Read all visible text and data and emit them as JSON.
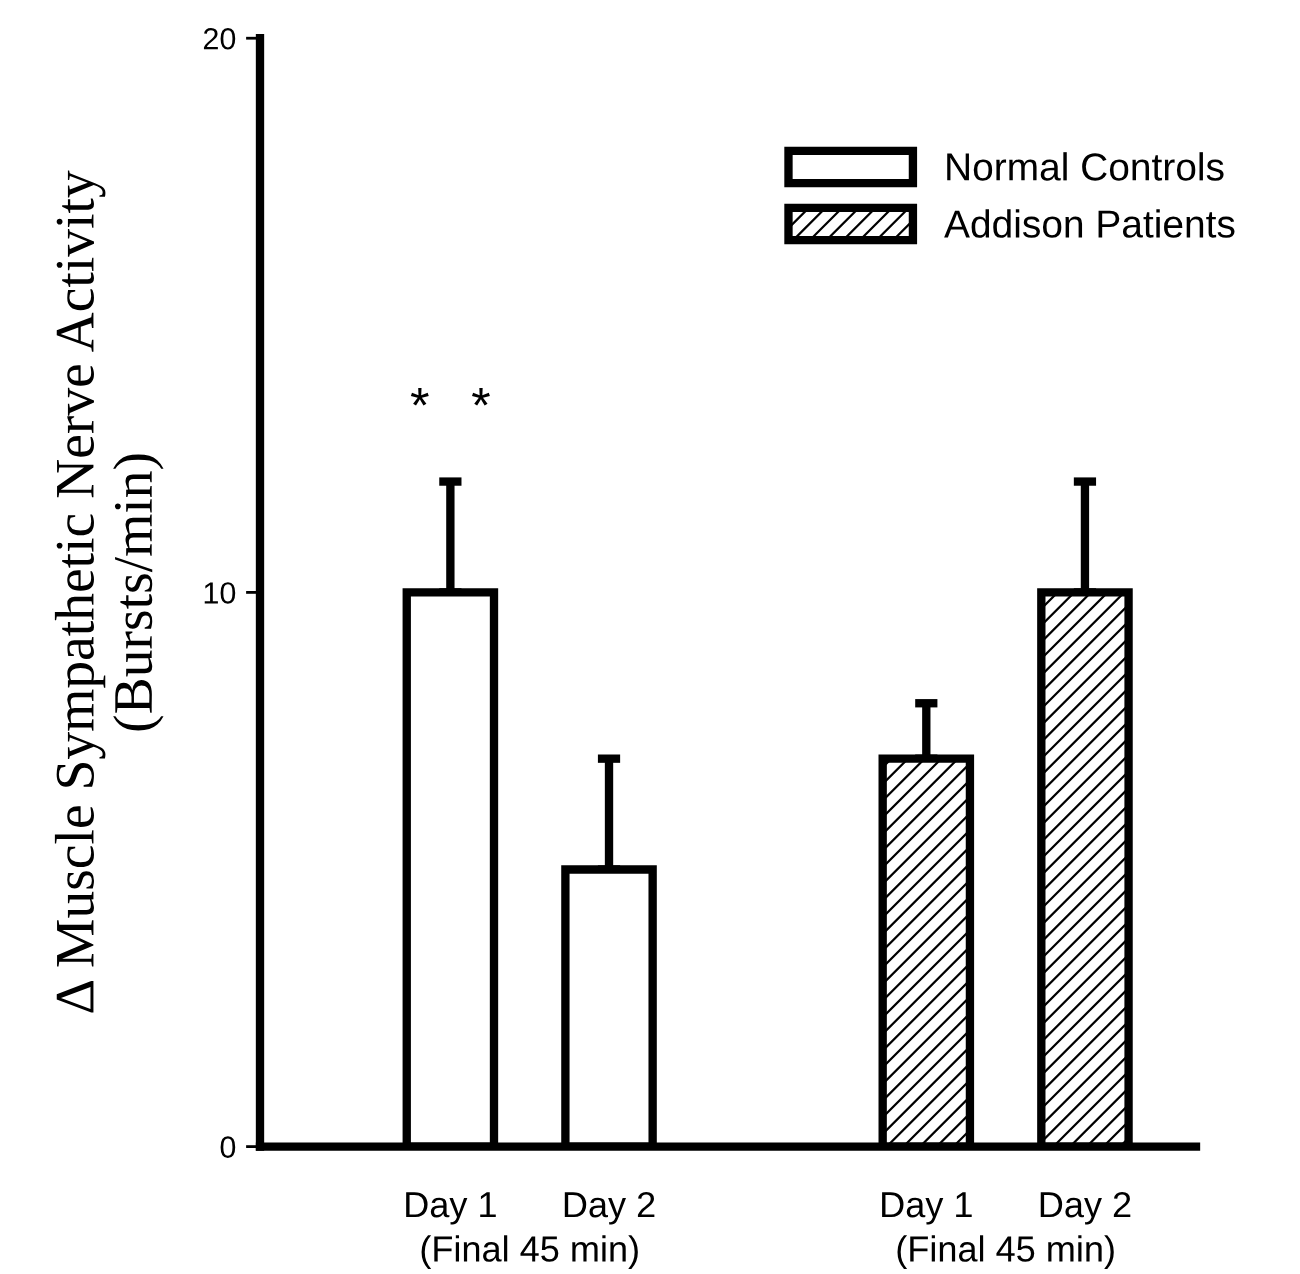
{
  "chart_data": {
    "type": "bar",
    "ylabel": "Δ Muscle Sympathetic Nerve Activity\n(Bursts/min)",
    "categories": [
      "Day 1",
      "Day 2",
      null,
      "Day 1",
      "Day 2"
    ],
    "series": [
      {
        "name": "Normal Controls",
        "color": "#000000",
        "values": [
          10,
          5,
          null,
          null,
          null
        ],
        "errors": [
          [
            10,
            12
          ],
          [
            5,
            7
          ],
          null,
          null,
          null
        ]
      },
      {
        "name": "Addison Patients",
        "color": "#000000",
        "values": [
          null,
          null,
          null,
          7,
          10
        ],
        "errors": [
          null,
          null,
          null,
          [
            7,
            8
          ],
          [
            10,
            12
          ]
        ]
      }
    ],
    "ylim": [
      0,
      20
    ],
    "yticks": [
      0,
      10,
      20
    ],
    "grid": false,
    "legend": "top right",
    "annotations": [
      "*   *",
      "(Final 45 min)",
      "(Final 45 min)"
    ]
  }
}
